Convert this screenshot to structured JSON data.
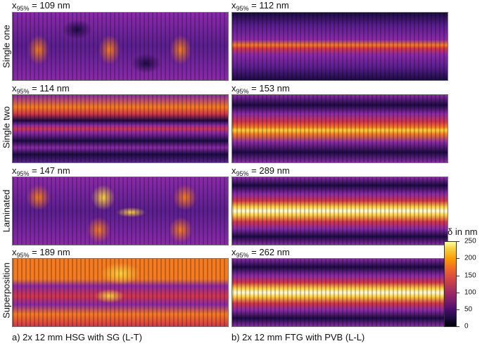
{
  "row_labels": [
    "Single one",
    "Single two",
    "Laminated",
    "Superposition"
  ],
  "panels": [
    {
      "col": 0,
      "row": 0,
      "x95_label": "x",
      "x95_sub": "95%",
      "x95_value": "= 109 nm",
      "pattern": "spots4"
    },
    {
      "col": 1,
      "row": 0,
      "x95_label": "x",
      "x95_sub": "95%",
      "x95_value": "= 112 nm",
      "pattern": "line-weak"
    },
    {
      "col": 0,
      "row": 1,
      "x95_label": "x",
      "x95_sub": "95%",
      "x95_value": "= 114 nm",
      "pattern": "band-top"
    },
    {
      "col": 1,
      "row": 1,
      "x95_label": "x",
      "x95_sub": "95%",
      "x95_value": "= 153 nm",
      "pattern": "line-mid"
    },
    {
      "col": 0,
      "row": 2,
      "x95_label": "x",
      "x95_sub": "95%",
      "x95_value": "= 147 nm",
      "pattern": "blobs"
    },
    {
      "col": 1,
      "row": 2,
      "x95_label": "x",
      "x95_sub": "95%",
      "x95_value": "= 289 nm",
      "pattern": "line-strong"
    },
    {
      "col": 0,
      "row": 3,
      "x95_label": "x",
      "x95_sub": "95%",
      "x95_value": "= 189 nm",
      "pattern": "super"
    },
    {
      "col": 1,
      "row": 3,
      "x95_label": "x",
      "x95_sub": "95%",
      "x95_value": "= 262 nm",
      "pattern": "line-strong"
    }
  ],
  "captions": [
    "a) 2x 12 mm HSG with SG (L-T)",
    "b) 2x 12 mm FTG with PVB (L-L)"
  ],
  "colorbar": {
    "title": "δ in nm",
    "ticks": [
      "250",
      "200",
      "150",
      "100",
      "50",
      "0"
    ],
    "min": 0,
    "max": 250,
    "colormap": "inferno"
  }
}
